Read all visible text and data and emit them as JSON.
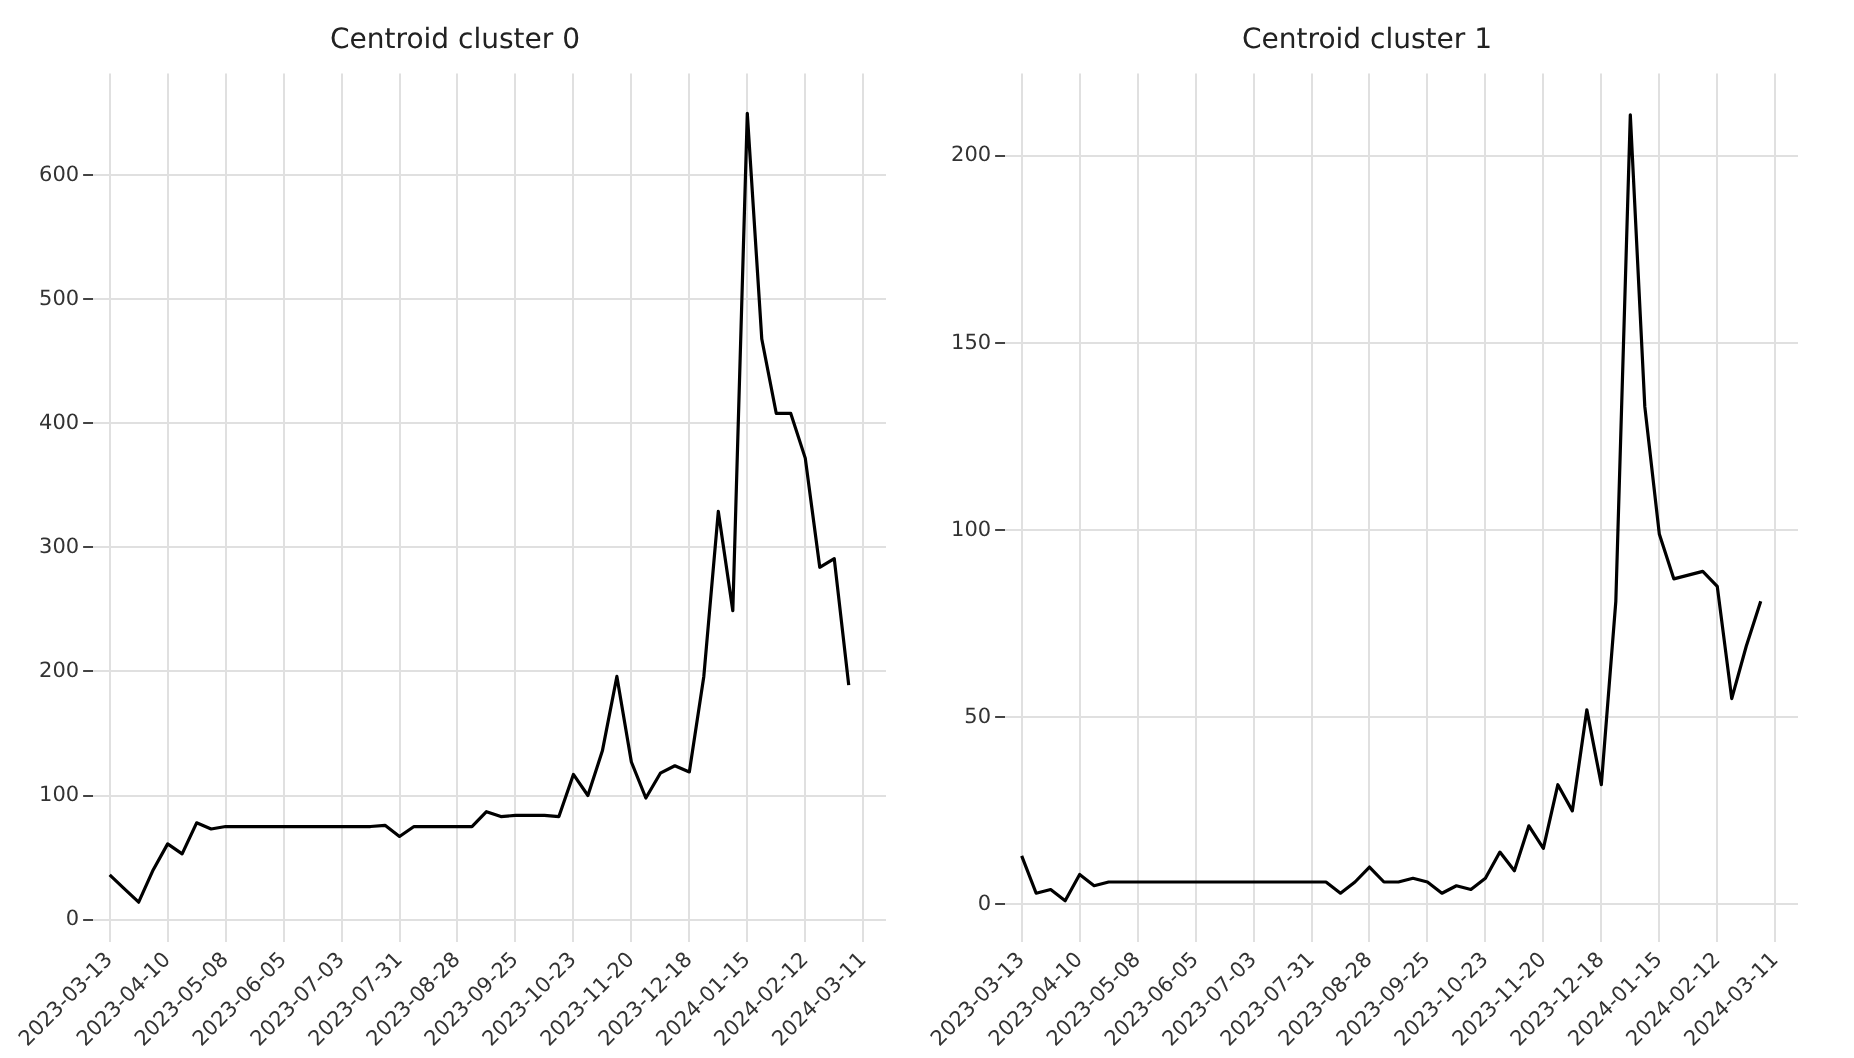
{
  "chart_data": [
    {
      "type": "line",
      "title": "Centroid cluster 0",
      "x": [
        "2023-03-13",
        "2023-03-20",
        "2023-03-27",
        "2023-04-03",
        "2023-04-10",
        "2023-04-17",
        "2023-04-24",
        "2023-05-01",
        "2023-05-08",
        "2023-05-15",
        "2023-05-22",
        "2023-05-29",
        "2023-06-05",
        "2023-06-12",
        "2023-06-19",
        "2023-06-26",
        "2023-07-03",
        "2023-07-10",
        "2023-07-17",
        "2023-07-24",
        "2023-07-31",
        "2023-08-07",
        "2023-08-14",
        "2023-08-21",
        "2023-08-28",
        "2023-09-04",
        "2023-09-11",
        "2023-09-18",
        "2023-09-25",
        "2023-10-02",
        "2023-10-09",
        "2023-10-16",
        "2023-10-23",
        "2023-10-30",
        "2023-11-06",
        "2023-11-13",
        "2023-11-20",
        "2023-11-27",
        "2023-12-04",
        "2023-12-11",
        "2023-12-18",
        "2023-12-25",
        "2024-01-01",
        "2024-01-08",
        "2024-01-15",
        "2024-01-22",
        "2024-01-29",
        "2024-02-05",
        "2024-02-12",
        "2024-02-19",
        "2024-02-26",
        "2024-03-04"
      ],
      "series": [
        {
          "color": "#000000",
          "values": [
            36,
            25,
            14,
            40,
            61,
            53,
            78,
            73,
            75,
            75,
            75,
            75,
            75,
            75,
            75,
            75,
            75,
            75,
            75,
            76,
            67,
            75,
            75,
            75,
            75,
            75,
            87,
            83,
            84,
            84,
            84,
            83,
            117,
            100,
            136,
            196,
            127,
            98,
            118,
            124,
            119,
            196,
            329,
            249,
            650,
            468,
            408,
            408,
            372,
            284,
            291,
            189
          ]
        }
      ],
      "xlim": [
        "2023-03-05",
        "2024-03-22"
      ],
      "xticks": [
        "2023-03-13",
        "2023-04-10",
        "2023-05-08",
        "2023-06-05",
        "2023-07-03",
        "2023-07-31",
        "2023-08-28",
        "2023-09-25",
        "2023-10-23",
        "2023-11-20",
        "2023-12-18",
        "2024-01-15",
        "2024-02-12",
        "2024-03-11"
      ],
      "ylim": [
        -18,
        682
      ],
      "yticks": [
        0,
        100,
        200,
        300,
        400,
        500,
        600
      ],
      "grid": true,
      "legend": false,
      "marker": "none",
      "line_style": "solid"
    },
    {
      "type": "line",
      "title": "Centroid cluster 1",
      "x": [
        "2023-03-13",
        "2023-03-20",
        "2023-03-27",
        "2023-04-03",
        "2023-04-10",
        "2023-04-17",
        "2023-04-24",
        "2023-05-01",
        "2023-05-08",
        "2023-05-15",
        "2023-05-22",
        "2023-05-29",
        "2023-06-05",
        "2023-06-12",
        "2023-06-19",
        "2023-06-26",
        "2023-07-03",
        "2023-07-10",
        "2023-07-17",
        "2023-07-24",
        "2023-07-31",
        "2023-08-07",
        "2023-08-14",
        "2023-08-21",
        "2023-08-28",
        "2023-09-04",
        "2023-09-11",
        "2023-09-18",
        "2023-09-25",
        "2023-10-02",
        "2023-10-09",
        "2023-10-16",
        "2023-10-23",
        "2023-10-30",
        "2023-11-06",
        "2023-11-13",
        "2023-11-20",
        "2023-11-27",
        "2023-12-04",
        "2023-12-11",
        "2023-12-18",
        "2023-12-25",
        "2024-01-01",
        "2024-01-08",
        "2024-01-15",
        "2024-01-22",
        "2024-01-29",
        "2024-02-05",
        "2024-02-12",
        "2024-02-19",
        "2024-02-26",
        "2024-03-04"
      ],
      "series": [
        {
          "color": "#000000",
          "values": [
            13,
            3,
            4,
            1,
            8,
            5,
            6,
            6,
            6,
            6,
            6,
            6,
            6,
            6,
            6,
            6,
            6,
            6,
            6,
            6,
            6,
            6,
            3,
            6,
            10,
            6,
            6,
            7,
            6,
            3,
            5,
            4,
            7,
            14,
            9,
            21,
            15,
            32,
            25,
            52,
            32,
            81,
            211,
            133,
            99,
            87,
            88,
            89,
            85,
            55,
            69,
            81
          ]
        }
      ],
      "xlim": [
        "2023-03-05",
        "2024-03-22"
      ],
      "xticks": [
        "2023-03-13",
        "2023-04-10",
        "2023-05-08",
        "2023-06-05",
        "2023-07-03",
        "2023-07-31",
        "2023-08-28",
        "2023-09-25",
        "2023-10-23",
        "2023-11-20",
        "2023-12-18",
        "2024-01-15",
        "2024-02-12",
        "2024-03-11"
      ],
      "ylim": [
        -10,
        222
      ],
      "yticks": [
        0,
        50,
        100,
        150,
        200
      ],
      "grid": true,
      "legend": false,
      "marker": "none",
      "line_style": "solid"
    }
  ]
}
